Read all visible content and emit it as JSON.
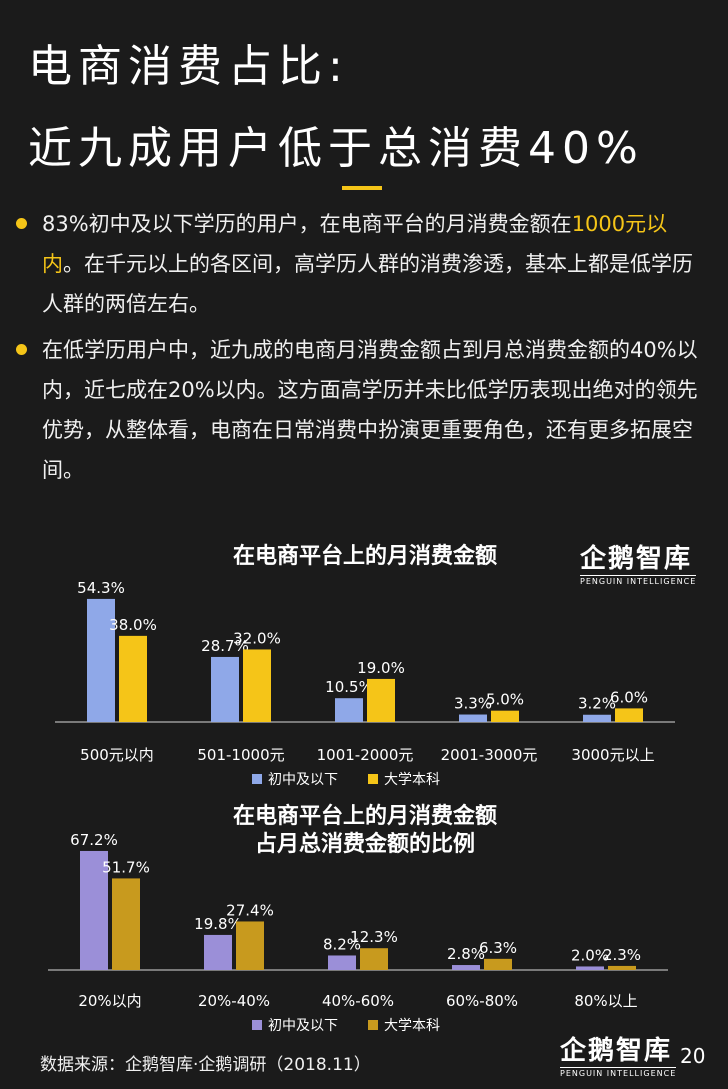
{
  "title": {
    "line1": "电商消费占比:",
    "line2": "近九成用户低于总消费40%"
  },
  "accent_color": "#f5c518",
  "bullets": [
    {
      "pre": "83%初中及以下学历的用户，在电商平台的月消费金额在",
      "highlight": "1000元以内",
      "post": "。在千元以上的各区间，高学历人群的消费渗透，基本上都是低学历人群的两倍左右。"
    },
    {
      "pre": "在低学历用户中，近九成的电商月消费金额占到月总消费金额的40%以内，近七成在20%以内。这方面高学历并未比低学历表现出绝对的领先优势，从整体看，电商在日常消费中扮演更重要角色，还有更多拓展空间。",
      "highlight": "",
      "post": ""
    }
  ],
  "logo": {
    "name": "企鹅智库",
    "sub": "PENGUIN INTELLIGENCE"
  },
  "chart_data": [
    {
      "type": "bar",
      "title": "在电商平台上的月消费金额",
      "categories": [
        "500元以内",
        "501-1000元",
        "1001-2000元",
        "2001-3000元",
        "3000元以上"
      ],
      "series": [
        {
          "name": "初中及以下",
          "values": [
            54.3,
            28.7,
            10.5,
            3.3,
            3.2
          ],
          "labels": [
            "54.3%",
            "28.7%",
            "10.5%",
            "3.3%",
            "3.2%"
          ],
          "color": "#8fa8e8"
        },
        {
          "name": "大学本科",
          "values": [
            38.0,
            32.0,
            19.0,
            5.0,
            6.0
          ],
          "labels": [
            "38.0%",
            "32.0%",
            "19.0%",
            "5.0%",
            "6.0%"
          ],
          "color": "#f5c518"
        }
      ],
      "ylim": [
        0,
        60
      ],
      "legend": "bottom"
    },
    {
      "type": "bar",
      "title": [
        "在电商平台上的月消费金额",
        "占月总消费金额的比例"
      ],
      "categories": [
        "20%以内",
        "20%-40%",
        "40%-60%",
        "60%-80%",
        "80%以上"
      ],
      "series": [
        {
          "name": "初中及以下",
          "values": [
            67.2,
            19.8,
            8.2,
            2.8,
            2.0
          ],
          "labels": [
            "67.2%",
            "19.8%",
            "8.2%",
            "2.8%",
            "2.0%"
          ],
          "color": "#9b8fd8"
        },
        {
          "name": "大学本科",
          "values": [
            51.7,
            27.4,
            12.3,
            6.3,
            2.3
          ],
          "labels": [
            "51.7%",
            "27.4%",
            "12.3%",
            "6.3%",
            "2.3%"
          ],
          "color": "#c89a1e"
        }
      ],
      "ylim": [
        0,
        70
      ],
      "legend": "bottom"
    }
  ],
  "source": "数据来源：企鹅智库·企鹅调研（2018.11）",
  "page_number": "20"
}
